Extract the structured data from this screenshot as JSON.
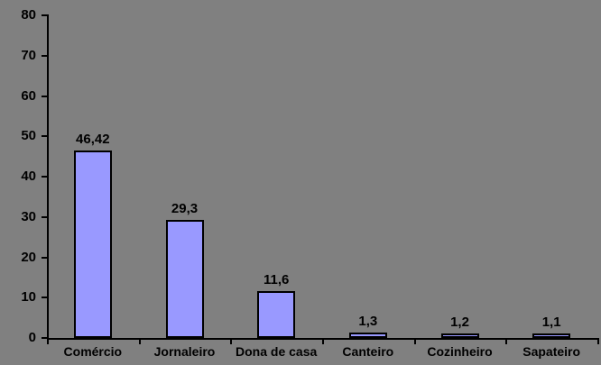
{
  "chart_data": {
    "type": "bar",
    "title": "",
    "xlabel": "",
    "ylabel": "",
    "categories": [
      "Comércio",
      "Jornaleiro",
      "Dona de casa",
      "Canteiro",
      "Cozinheiro",
      "Sapateiro"
    ],
    "values": [
      46.42,
      29.3,
      11.6,
      1.3,
      1.2,
      1.1
    ],
    "value_labels": [
      "46,42",
      "29,3",
      "11,6",
      "1,3",
      "1,2",
      "1,1"
    ],
    "y_ticks": [
      0,
      10,
      20,
      30,
      40,
      50,
      60,
      70,
      80
    ],
    "ylim": [
      0,
      80
    ],
    "grid": false,
    "legend": false,
    "colors": {
      "background": "#808080",
      "bar_fill": "#9999FF",
      "bar_border": "#000000",
      "axis": "#000000",
      "text": "#000000"
    }
  }
}
